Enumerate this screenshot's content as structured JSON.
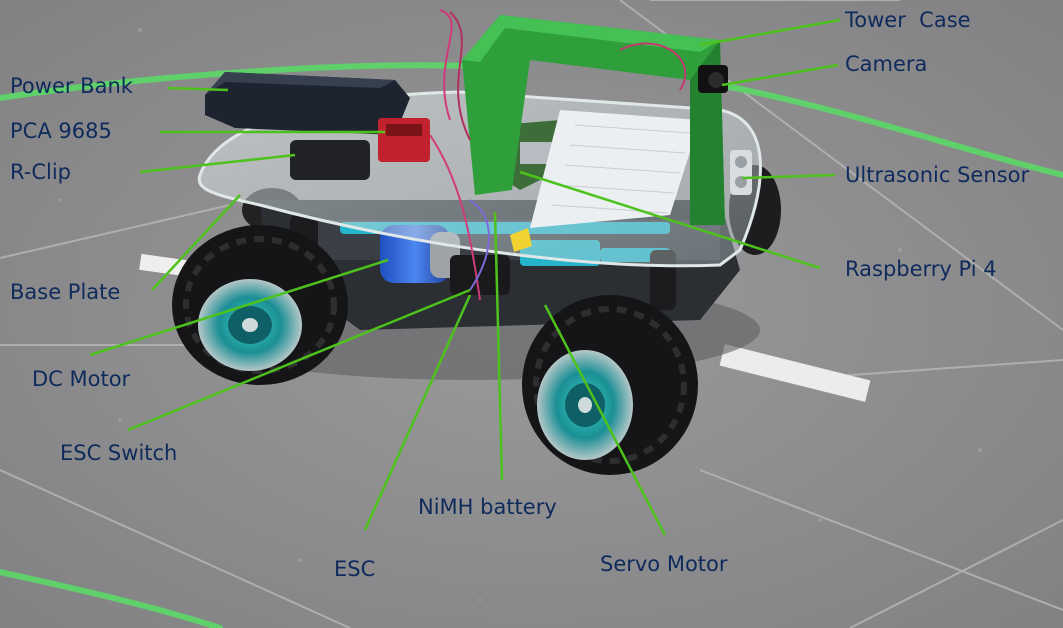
{
  "photo": {
    "subject": "rc-car-platform",
    "leader_line_color": "#4ec21c",
    "label_color": "#0f2a5c"
  },
  "labels": {
    "power_bank": "Power Bank",
    "pca9685": "PCA 9685",
    "r_clip": "R-Clip",
    "base_plate": "Base Plate",
    "dc_motor": "DC Motor",
    "esc_switch": "ESC Switch",
    "esc": "ESC",
    "nimh_battery": "NiMH battery",
    "servo_motor": "Servo Motor",
    "raspberry_pi": "Raspberry Pi 4",
    "ultrasonic_sensor": "Ultrasonic Sensor",
    "camera": "Camera",
    "tower_case": "Tower  Case"
  }
}
